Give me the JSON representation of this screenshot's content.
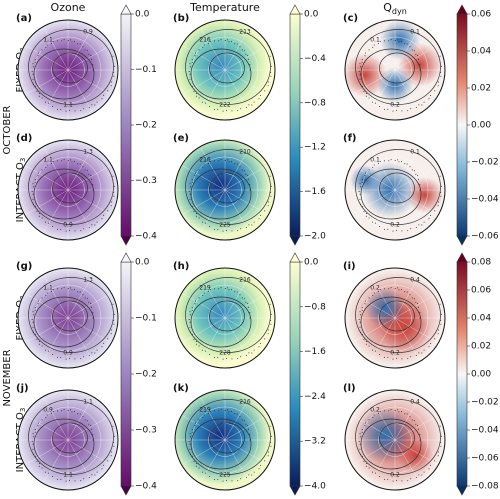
{
  "columns": [
    {
      "title": "Ozone"
    },
    {
      "title": "Temperature"
    },
    {
      "title": "Q",
      "subscript": "dyn"
    }
  ],
  "months": [
    "OCTOBER",
    "NOVEMBER"
  ],
  "rows": [
    {
      "label": "FIXED O",
      "subscript": "3"
    },
    {
      "label": "INTERACT O",
      "subscript": "3"
    },
    {
      "label": "FIXED O",
      "subscript": "3"
    },
    {
      "label": "INTERACT O",
      "subscript": "3"
    }
  ],
  "panels": [
    {
      "label": "(a)",
      "contour_labels": [
        "1.1",
        "0.9",
        "1.1"
      ]
    },
    {
      "label": "(b)",
      "contour_labels": [
        "216",
        "213",
        "222"
      ]
    },
    {
      "label": "(c)",
      "contour_labels": [
        "0.1",
        "0.1",
        "0.2"
      ]
    },
    {
      "label": "(d)",
      "contour_labels": [
        "1.1",
        "1.3",
        "0.9"
      ]
    },
    {
      "label": "(e)",
      "contour_labels": [
        "216",
        "210",
        "225"
      ]
    },
    {
      "label": "(f)",
      "contour_labels": [
        "0.1",
        "0.1",
        "0.2"
      ]
    },
    {
      "label": "(g)",
      "contour_labels": [
        "1.1",
        "1.3",
        "0.9"
      ]
    },
    {
      "label": "(h)",
      "contour_labels": [
        "219",
        "216",
        "228"
      ]
    },
    {
      "label": "(i)",
      "contour_labels": [
        "0.2",
        "0.4",
        "0.2"
      ]
    },
    {
      "label": "(j)",
      "contour_labels": [
        "0.9",
        "1.1",
        "1.1"
      ]
    },
    {
      "label": "(k)",
      "contour_labels": [
        "219",
        "216",
        "225"
      ]
    },
    {
      "label": "(l)",
      "contour_labels": [
        "0.2",
        "0.4",
        "0.2"
      ]
    }
  ],
  "colorbars": [
    {
      "lim": [
        -0.4,
        0
      ],
      "ticks": [
        {
          "value": 0,
          "label": "0.0"
        },
        {
          "value": -0.1,
          "label": "−0.1"
        },
        {
          "value": -0.2,
          "label": "−0.2"
        },
        {
          "value": -0.3,
          "label": "−0.3"
        },
        {
          "value": -0.4,
          "label": "−0.4"
        }
      ]
    },
    {
      "lim": [
        -2,
        0
      ],
      "ticks": [
        {
          "value": 0,
          "label": "0.0"
        },
        {
          "value": -0.4,
          "label": "−0.4"
        },
        {
          "value": -0.8,
          "label": "−0.8"
        },
        {
          "value": -1.2,
          "label": "−1.2"
        },
        {
          "value": -1.6,
          "label": "−1.6"
        },
        {
          "value": -2,
          "label": "−2.0"
        }
      ]
    },
    {
      "lim": [
        -0.06,
        0.06
      ],
      "ticks": [
        {
          "value": 0.06,
          "label": "0.06"
        },
        {
          "value": 0.04,
          "label": "0.04"
        },
        {
          "value": 0.02,
          "label": "0.02"
        },
        {
          "value": 0,
          "label": "0.00"
        },
        {
          "value": -0.02,
          "label": "−0.02"
        },
        {
          "value": -0.04,
          "label": "−0.04"
        },
        {
          "value": -0.06,
          "label": "−0.06"
        }
      ]
    },
    {
      "lim": [
        -0.4,
        0
      ],
      "ticks": [
        {
          "value": 0,
          "label": "0.0"
        },
        {
          "value": -0.1,
          "label": "−0.1"
        },
        {
          "value": -0.2,
          "label": "−0.2"
        },
        {
          "value": -0.3,
          "label": "−0.3"
        },
        {
          "value": -0.4,
          "label": "−0.4"
        }
      ]
    },
    {
      "lim": [
        -4,
        0
      ],
      "ticks": [
        {
          "value": 0,
          "label": "0.0"
        },
        {
          "value": -0.8,
          "label": "−0.8"
        },
        {
          "value": -1.6,
          "label": "−1.6"
        },
        {
          "value": -2.4,
          "label": "−2.4"
        },
        {
          "value": -3.2,
          "label": "−3.2"
        },
        {
          "value": -4,
          "label": "−4.0"
        }
      ]
    },
    {
      "lim": [
        -0.08,
        0.08
      ],
      "ticks": [
        {
          "value": 0.08,
          "label": "0.08"
        },
        {
          "value": 0.06,
          "label": "0.06"
        },
        {
          "value": 0.04,
          "label": "0.04"
        },
        {
          "value": 0.02,
          "label": "0.02"
        },
        {
          "value": 0,
          "label": "0.00"
        },
        {
          "value": -0.02,
          "label": "−0.02"
        },
        {
          "value": -0.04,
          "label": "−0.04"
        },
        {
          "value": -0.06,
          "label": "−0.06"
        },
        {
          "value": -0.08,
          "label": "−0.08"
        }
      ]
    }
  ]
}
